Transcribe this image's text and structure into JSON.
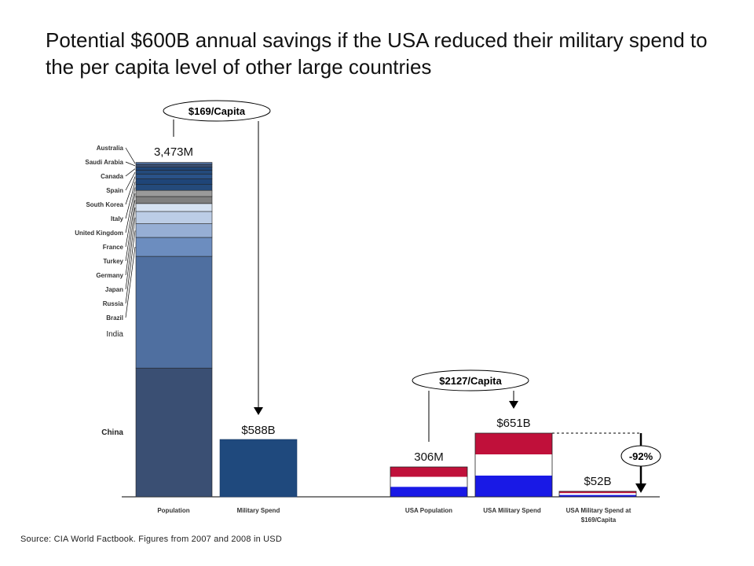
{
  "title": "Potential $600B annual savings if the USA reduced their military spend to the per capita level of other large countries",
  "source": "Source: CIA World Factbook. Figures from 2007 and 2008 in USD",
  "colors": {
    "stack": [
      "#3a4f73",
      "#4f6fa0",
      "#6c8dbf",
      "#96aed4",
      "#bccde6",
      "#d5e1f1",
      "#7f7f7f",
      "#9a9a9a",
      "#244a7b",
      "#1f4578",
      "#2a5288",
      "#244a7b",
      "#1f4578"
    ],
    "military_blue": "#1f497d",
    "usa_red": "#c0103a",
    "usa_white": "#ffffff",
    "usa_blue": "#1919e6"
  },
  "chart_data": {
    "type": "bar",
    "title": "",
    "categories": [
      "Population",
      "Military Spend",
      "USA Population",
      "USA Military Spend",
      "USA Military Spend at $169/Capita"
    ],
    "population_stack": [
      {
        "name": "China",
        "share": 0.3845
      },
      {
        "name": "India",
        "share": 0.3337
      },
      {
        "name": "Brazil",
        "share": 0.0565
      },
      {
        "name": "Russia",
        "share": 0.0408
      },
      {
        "name": "Japan",
        "share": 0.0368
      },
      {
        "name": "Germany",
        "share": 0.0236
      },
      {
        "name": "Turkey",
        "share": 0.0207
      },
      {
        "name": "France",
        "share": 0.0184
      },
      {
        "name": "United Kingdom",
        "share": 0.0176
      },
      {
        "name": "Italy",
        "share": 0.0167
      },
      {
        "name": "South Korea",
        "share": 0.0141
      },
      {
        "name": "Spain",
        "share": 0.0115
      },
      {
        "name": "Canada",
        "share": 0.0095
      },
      {
        "name": "Saudi Arabia",
        "share": 0.0082
      },
      {
        "name": "Australia",
        "share": 0.0059
      }
    ],
    "values": {
      "population": "3,473M",
      "military_spend": "$588B",
      "usa_population": "306M",
      "usa_military_spend": "$651B",
      "usa_spend_at_169": "$52B"
    },
    "per_capita": {
      "others": "$169/Capita",
      "usa": "$2127/Capita"
    },
    "reduction": "-92%",
    "labels": {
      "population": "Population",
      "military_spend": "Military Spend",
      "usa_population": "USA Population",
      "usa_military_spend": "USA Military Spend",
      "usa_spend_at_169": [
        "USA Military Spend at",
        "$169/Capita"
      ]
    }
  }
}
